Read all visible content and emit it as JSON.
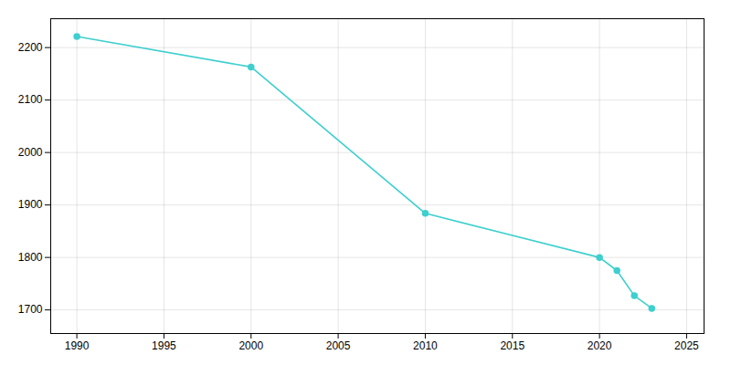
{
  "chart_data": {
    "type": "line",
    "x": [
      1990,
      2000,
      2010,
      2020,
      2021,
      2022,
      2023
    ],
    "values": [
      2221,
      2163,
      1884,
      1800,
      1775,
      1727,
      1703
    ],
    "color": "#3ecfcf",
    "marker": "circle",
    "xlim": [
      1988.5,
      2026
    ],
    "ylim": [
      1655,
      2255
    ],
    "xticks": [
      1990,
      1995,
      2000,
      2005,
      2010,
      2015,
      2020,
      2025
    ],
    "yticks": [
      1700,
      1800,
      1900,
      2000,
      2100,
      2200
    ],
    "grid": true
  }
}
